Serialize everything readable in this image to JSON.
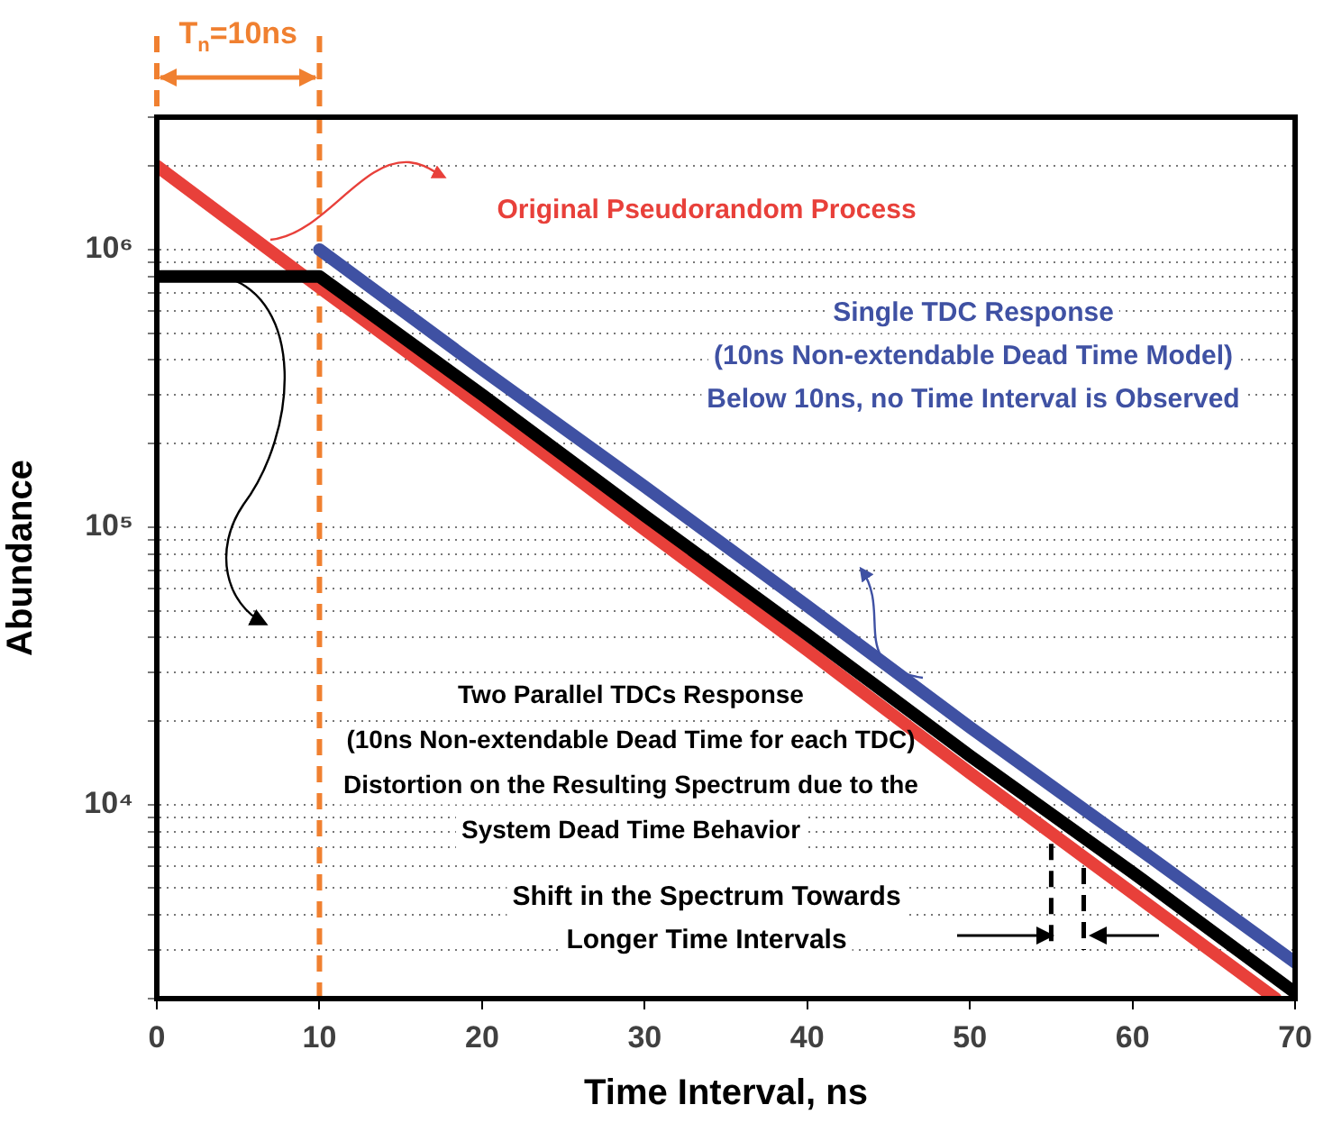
{
  "chart_data": {
    "type": "line",
    "xlabel": "Time Interval, ns",
    "ylabel": "Abundance",
    "log": "y",
    "grid": "y",
    "legend": false,
    "marker": "none",
    "xlim": [
      0,
      70
    ],
    "xticks": [
      0,
      10,
      20,
      30,
      40,
      50,
      60,
      70
    ],
    "ylim": [
      2000,
      3000000
    ],
    "yticks": [
      {
        "value": 2000,
        "label": null
      },
      {
        "value": 3000,
        "label": null
      },
      {
        "value": 4000,
        "label": null
      },
      {
        "value": 5000,
        "label": null
      },
      {
        "value": 6000,
        "label": null
      },
      {
        "value": 7000,
        "label": null
      },
      {
        "value": 8000,
        "label": null
      },
      {
        "value": 9000,
        "label": null
      },
      {
        "value": 10000,
        "label": "10⁴"
      },
      {
        "value": 20000,
        "label": null
      },
      {
        "value": 30000,
        "label": null
      },
      {
        "value": 40000,
        "label": null
      },
      {
        "value": 50000,
        "label": null
      },
      {
        "value": 60000,
        "label": null
      },
      {
        "value": 70000,
        "label": null
      },
      {
        "value": 80000,
        "label": null
      },
      {
        "value": 90000,
        "label": null
      },
      {
        "value": 100000,
        "label": "10⁵"
      },
      {
        "value": 200000,
        "label": null
      },
      {
        "value": 300000,
        "label": null
      },
      {
        "value": 400000,
        "label": null
      },
      {
        "value": 500000,
        "label": null
      },
      {
        "value": 600000,
        "label": null
      },
      {
        "value": 700000,
        "label": null
      },
      {
        "value": 800000,
        "label": null
      },
      {
        "value": 900000,
        "label": null
      },
      {
        "value": 1000000,
        "label": "10⁶"
      },
      {
        "value": 2000000,
        "label": null
      },
      {
        "value": 3000000,
        "label": null
      }
    ],
    "series": [
      {
        "name": "Original Pseudorandom Process",
        "color": "#e8403a",
        "x": [
          0,
          10,
          20,
          30,
          40,
          50,
          60,
          68.8
        ],
        "values": [
          2000000,
          730000,
          270000,
          98000,
          36000,
          13000,
          4800,
          2000
        ]
      },
      {
        "name": "Single TDC Response",
        "color": "#3f51a3",
        "x": [
          10,
          20,
          30,
          40,
          50,
          60,
          70
        ],
        "values": [
          1000000,
          370000,
          140000,
          52000,
          19000,
          7200,
          2700
        ]
      },
      {
        "name": "Two Parallel TDCs Response",
        "color": "#000000",
        "x": [
          0,
          10,
          20,
          30,
          40,
          50,
          60,
          70
        ],
        "values": [
          800000,
          800000,
          300000,
          110000,
          41000,
          15000,
          5700,
          2100
        ]
      }
    ],
    "ref_lines": [
      {
        "axis": "x",
        "value": 10,
        "label": "T$_{n}$=10ns",
        "color": "#f08030",
        "line_style": "dashed"
      },
      {
        "axis": "x",
        "value": 55,
        "color": "#000000",
        "line_style": "dashed"
      },
      {
        "axis": "x",
        "value": 57,
        "color": "#000000",
        "line_style": "dashed"
      }
    ],
    "annotations": [
      "(10ns Non-extendable Dead Time Model)",
      "Below 10ns, no Time Interval is Observed",
      "(10ns Non-extendable Dead Time for each TDC)",
      "Distortion on the Resulting Spectrum due to the",
      "System Dead Time Behavior",
      "Shift in the Spectrum Towards",
      "Longer Time Intervals"
    ]
  }
}
